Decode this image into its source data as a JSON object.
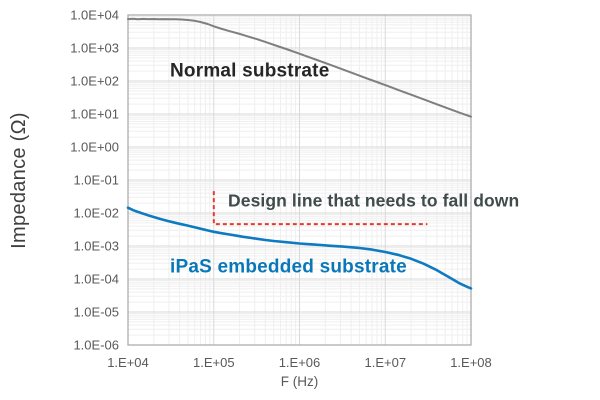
{
  "chart_data": {
    "type": "line",
    "x_scale": "log",
    "y_scale": "log",
    "xlim": [
      10000,
      100000000
    ],
    "ylim": [
      1e-06,
      10000
    ],
    "xlabel": "F (Hz)",
    "ylabel": "Impedance (Ω)",
    "grid": "major and minor log gridlines, both axes",
    "legend": "none (direct curve labels)",
    "x_tick_labels": [
      "1.E+04",
      "1.E+05",
      "1.E+06",
      "1.E+07",
      "1.E+08"
    ],
    "y_tick_labels": [
      "1.0E+04",
      "1.0E+03",
      "1.0E+02",
      "1.0E+01",
      "1.0E+00",
      "1.0E-01",
      "1.0E-02",
      "1.0E-03",
      "1.0E-04",
      "1.0E-05",
      "1.0E-06"
    ],
    "series": [
      {
        "name": "Normal substrate",
        "color": "#7f7f7f",
        "width": 2,
        "points": [
          [
            10000,
            7500
          ],
          [
            11500,
            7680
          ],
          [
            13000,
            7460
          ],
          [
            15000,
            7620
          ],
          [
            17000,
            7500
          ],
          [
            20000,
            7560
          ],
          [
            23000,
            7470
          ],
          [
            27000,
            7520
          ],
          [
            31000,
            7430
          ],
          [
            36000,
            7400
          ],
          [
            42000,
            7280
          ],
          [
            50000,
            7050
          ],
          [
            60000,
            6650
          ],
          [
            70000,
            6150
          ],
          [
            85000,
            5350
          ],
          [
            100000,
            4550
          ],
          [
            120000,
            3900
          ],
          [
            150000,
            3300
          ],
          [
            200000,
            2680
          ],
          [
            250000,
            2250
          ],
          [
            320000,
            1850
          ],
          [
            420000,
            1460
          ],
          [
            550000,
            1150
          ],
          [
            700000,
            930
          ],
          [
            900000,
            740
          ],
          [
            1200000,
            565
          ],
          [
            1600000,
            432
          ],
          [
            2200000,
            320
          ],
          [
            3000000,
            238
          ],
          [
            4200000,
            172
          ],
          [
            6000000,
            122
          ],
          [
            8000000,
            93
          ],
          [
            10000000,
            75
          ],
          [
            14000000,
            54
          ],
          [
            20000000,
            38.5
          ],
          [
            28000000,
            27.8
          ],
          [
            40000000,
            19.7
          ],
          [
            55000000,
            14.5
          ],
          [
            75000000,
            10.8
          ],
          [
            100000000,
            8.3
          ]
        ]
      },
      {
        "name": "iPaS embedded substrate",
        "color": "#0e7bc0",
        "width": 2.6,
        "points": [
          [
            10000,
            0.0145
          ],
          [
            11500,
            0.0122
          ],
          [
            13000,
            0.0108
          ],
          [
            15000,
            0.0096
          ],
          [
            17000,
            0.0086
          ],
          [
            19500,
            0.0077
          ],
          [
            22000,
            0.007
          ],
          [
            26000,
            0.0062
          ],
          [
            30000,
            0.0056
          ],
          [
            35000,
            0.0051
          ],
          [
            40000,
            0.0047
          ],
          [
            47000,
            0.0043
          ],
          [
            55000,
            0.0039
          ],
          [
            65000,
            0.0035
          ],
          [
            75000,
            0.0032
          ],
          [
            87000,
            0.00293
          ],
          [
            100000,
            0.0027
          ],
          [
            125000,
            0.00243
          ],
          [
            150000,
            0.00225
          ],
          [
            185000,
            0.00205
          ],
          [
            220000,
            0.0019
          ],
          [
            270000,
            0.00176
          ],
          [
            320000,
            0.00165
          ],
          [
            400000,
            0.00152
          ],
          [
            500000,
            0.00142
          ],
          [
            700000,
            0.0013
          ],
          [
            1000000,
            0.00119
          ],
          [
            1500000,
            0.0011
          ],
          [
            2200000,
            0.00102
          ],
          [
            3200000,
            0.00096
          ],
          [
            5000000,
            0.00087
          ],
          [
            7000000,
            0.00078
          ],
          [
            10000000,
            0.00066
          ],
          [
            14000000,
            0.00054
          ],
          [
            20000000,
            0.00041
          ],
          [
            28000000,
            0.00029
          ],
          [
            40000000,
            0.000185
          ],
          [
            55000000,
            0.000115
          ],
          [
            75000000,
            7.2e-05
          ],
          [
            90000000,
            5.8e-05
          ],
          [
            100000000,
            5.2e-05
          ]
        ]
      }
    ],
    "design_line": {
      "color": "#e83a2d",
      "style": "dashed",
      "corner_f": 100000,
      "top_z": 0.046,
      "level_z": 0.0046,
      "end_f": 31000000
    },
    "annotations": [
      {
        "text": "Normal substrate",
        "color": "#262626",
        "f": 31000,
        "z": 200
      },
      {
        "text": "Design line that needs to fall down",
        "color": "#414b4b",
        "f": 147000,
        "z": 0.023
      },
      {
        "text": "iPaS embedded substrate",
        "color": "#0a78b8",
        "f": 31000,
        "z": 0.00023
      }
    ],
    "style_colors": {
      "grid_major": "#d9d9d9",
      "grid_minor": "#efefef",
      "plot_border": "#a6a6a6",
      "tick_text": "#595959"
    }
  }
}
